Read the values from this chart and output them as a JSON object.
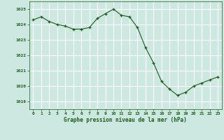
{
  "x": [
    0,
    1,
    2,
    3,
    4,
    5,
    6,
    7,
    8,
    9,
    10,
    11,
    12,
    13,
    14,
    15,
    16,
    17,
    18,
    19,
    20,
    21,
    22,
    23
  ],
  "y": [
    1024.3,
    1024.5,
    1024.2,
    1024.0,
    1023.9,
    1023.7,
    1023.7,
    1023.8,
    1024.4,
    1024.7,
    1025.0,
    1024.6,
    1024.5,
    1023.8,
    1022.5,
    1021.5,
    1020.3,
    1019.8,
    1019.4,
    1019.6,
    1020.0,
    1020.2,
    1020.4,
    1020.6
  ],
  "line_color": "#1a5c1a",
  "marker_color": "#1a5c1a",
  "bg_plot": "#cce8e0",
  "bg_figure": "#cce8e0",
  "grid_color": "#ffffff",
  "xlabel": "Graphe pression niveau de la mer (hPa)",
  "xlabel_color": "#1a5c1a",
  "tick_color": "#1a5c1a",
  "ylim": [
    1018.5,
    1025.5
  ],
  "yticks": [
    1019,
    1020,
    1021,
    1022,
    1023,
    1024,
    1025
  ],
  "xticks": [
    0,
    1,
    2,
    3,
    4,
    5,
    6,
    7,
    8,
    9,
    10,
    11,
    12,
    13,
    14,
    15,
    16,
    17,
    18,
    19,
    20,
    21,
    22,
    23
  ],
  "figsize": [
    3.2,
    2.0
  ],
  "dpi": 100
}
